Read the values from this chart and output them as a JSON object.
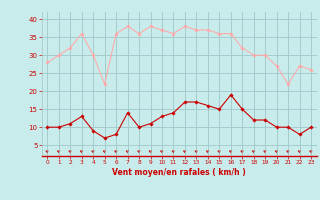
{
  "hours": [
    0,
    1,
    2,
    3,
    4,
    5,
    6,
    7,
    8,
    9,
    10,
    11,
    12,
    13,
    14,
    15,
    16,
    17,
    18,
    19,
    20,
    21,
    22,
    23
  ],
  "wind_avg": [
    10,
    10,
    11,
    13,
    9,
    7,
    8,
    14,
    10,
    11,
    13,
    14,
    17,
    17,
    16,
    15,
    19,
    15,
    12,
    12,
    10,
    10,
    8,
    10
  ],
  "wind_gust": [
    28,
    30,
    32,
    36,
    30,
    22,
    36,
    38,
    36,
    38,
    37,
    36,
    38,
    37,
    37,
    36,
    36,
    32,
    30,
    30,
    27,
    22,
    27,
    26
  ],
  "bg_color": "#c8ecec",
  "grid_color": "#a0c8c8",
  "avg_color": "#cc0000",
  "gust_color": "#ffaaaa",
  "xlabel": "Vent moyen/en rafales ( km/h )",
  "xlabel_color": "#cc0000",
  "tick_color": "#cc0000",
  "yticks": [
    5,
    10,
    15,
    20,
    25,
    30,
    35,
    40
  ],
  "ylim": [
    2,
    42
  ],
  "xlim": [
    -0.5,
    23.5
  ],
  "figwidth": 3.2,
  "figheight": 2.0,
  "dpi": 100
}
